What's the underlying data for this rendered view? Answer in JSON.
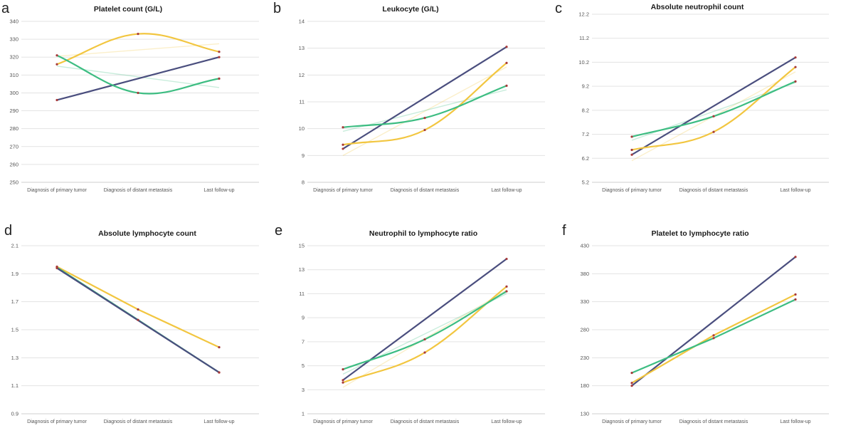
{
  "colors": {
    "navy": "#4a4e7e",
    "yellow": "#f2c640",
    "green": "#3dbd82",
    "marker": "#a83a3a"
  },
  "chart_data": [
    {
      "letter": "a",
      "type": "line",
      "title": "Platelet count  (G/L)",
      "categories": [
        "Diagnosis of primary tumor",
        "Diagnosis of distant metastasis",
        "Last follow-up"
      ],
      "ylim": [
        250,
        340
      ],
      "yticks": [
        "250",
        "260",
        "270",
        "280",
        "290",
        "300",
        "310",
        "320",
        "330",
        "340"
      ],
      "series": [
        {
          "name": "navy",
          "values": [
            296,
            null,
            320
          ],
          "curve": "straight"
        },
        {
          "name": "yellow",
          "values": [
            316,
            333,
            323
          ],
          "curve": "smooth",
          "trend": [
            320.5,
            327.5
          ]
        },
        {
          "name": "green",
          "values": [
            321,
            300,
            308
          ],
          "curve": "smooth",
          "trend": [
            315,
            303
          ]
        }
      ]
    },
    {
      "letter": "b",
      "type": "line",
      "title": "Leukocyte  (G/L)",
      "categories": [
        "Diagnosis of primary tumor",
        "Diagnosis of distant metastasis",
        "Last follow-up"
      ],
      "ylim": [
        8,
        14
      ],
      "yticks": [
        "8",
        "9",
        "10",
        "11",
        "12",
        "13",
        "14"
      ],
      "series": [
        {
          "name": "navy",
          "values": [
            9.25,
            null,
            13.05
          ],
          "curve": "straight"
        },
        {
          "name": "yellow",
          "values": [
            9.4,
            9.95,
            12.45
          ],
          "curve": "smooth",
          "trend": [
            9.0,
            12.3
          ]
        },
        {
          "name": "green",
          "values": [
            10.05,
            10.4,
            11.6
          ],
          "curve": "smooth",
          "trend": [
            9.9,
            11.45
          ]
        }
      ]
    },
    {
      "letter": "c",
      "type": "line",
      "title": "Absolute neutrophil count",
      "categories": [
        "Diagnosis of primary tumor",
        "Diagnosis of distant metastasis",
        "Last follow-up"
      ],
      "ylim": [
        5.2,
        12.2
      ],
      "yticks": [
        "5.2",
        "6.2",
        "7.2",
        "8.2",
        "9.2",
        "10.2",
        "11.2",
        "12.2"
      ],
      "series": [
        {
          "name": "navy",
          "values": [
            6.35,
            null,
            10.4
          ],
          "curve": "straight"
        },
        {
          "name": "yellow",
          "values": [
            6.55,
            7.3,
            10.0
          ],
          "curve": "smooth",
          "trend": [
            6.1,
            9.8
          ]
        },
        {
          "name": "green",
          "values": [
            7.1,
            7.95,
            9.4
          ],
          "curve": "smooth",
          "trend": [
            6.95,
            9.35
          ]
        }
      ]
    },
    {
      "letter": "d",
      "type": "line",
      "title": "Absolute lymphocyte count",
      "categories": [
        "Diagnosis of primary tumor",
        "Diagnosis of distant metastasis",
        "Last follow-up"
      ],
      "ylim": [
        0.9,
        2.1
      ],
      "yticks": [
        "0.9",
        "1.1",
        "1.3",
        "1.5",
        "1.7",
        "1.9",
        "2.1"
      ],
      "series": [
        {
          "name": "yellow",
          "values": [
            1.95,
            1.645,
            1.375
          ],
          "curve": "straight"
        },
        {
          "name": "green",
          "values": [
            1.945,
            1.57,
            1.195
          ],
          "curve": "straight"
        },
        {
          "name": "navy",
          "values": [
            1.94,
            null,
            1.195
          ],
          "curve": "straight"
        }
      ]
    },
    {
      "letter": "e",
      "type": "line",
      "title": "Neutrophil to lymphocyte ratio",
      "categories": [
        "Diagnosis of primary tumor",
        "Diagnosis of distant metastasis",
        "Last follow-up"
      ],
      "ylim": [
        1,
        15
      ],
      "yticks": [
        "1",
        "3",
        "5",
        "7",
        "9",
        "11",
        "13",
        "15"
      ],
      "series": [
        {
          "name": "navy",
          "values": [
            3.8,
            null,
            13.9
          ],
          "curve": "straight"
        },
        {
          "name": "yellow",
          "values": [
            3.6,
            6.1,
            11.6
          ],
          "curve": "smooth",
          "trend": [
            3.2,
            11.3
          ]
        },
        {
          "name": "green",
          "values": [
            4.7,
            7.2,
            11.2
          ],
          "curve": "smooth",
          "trend": [
            4.3,
            11.0
          ]
        }
      ]
    },
    {
      "letter": "f",
      "type": "line",
      "title": "Platelet to lymphocyte ratio",
      "categories": [
        "Diagnosis of primary tumor",
        "Diagnosis of distant metastasis",
        "Last follow-up"
      ],
      "ylim": [
        130,
        430
      ],
      "yticks": [
        "130",
        "180",
        "230",
        "280",
        "330",
        "380",
        "430"
      ],
      "series": [
        {
          "name": "navy",
          "values": [
            180,
            null,
            410
          ],
          "curve": "straight"
        },
        {
          "name": "yellow",
          "values": [
            185,
            270,
            343
          ],
          "curve": "straight"
        },
        {
          "name": "green",
          "values": [
            203,
            265,
            334
          ],
          "curve": "straight"
        }
      ]
    }
  ]
}
